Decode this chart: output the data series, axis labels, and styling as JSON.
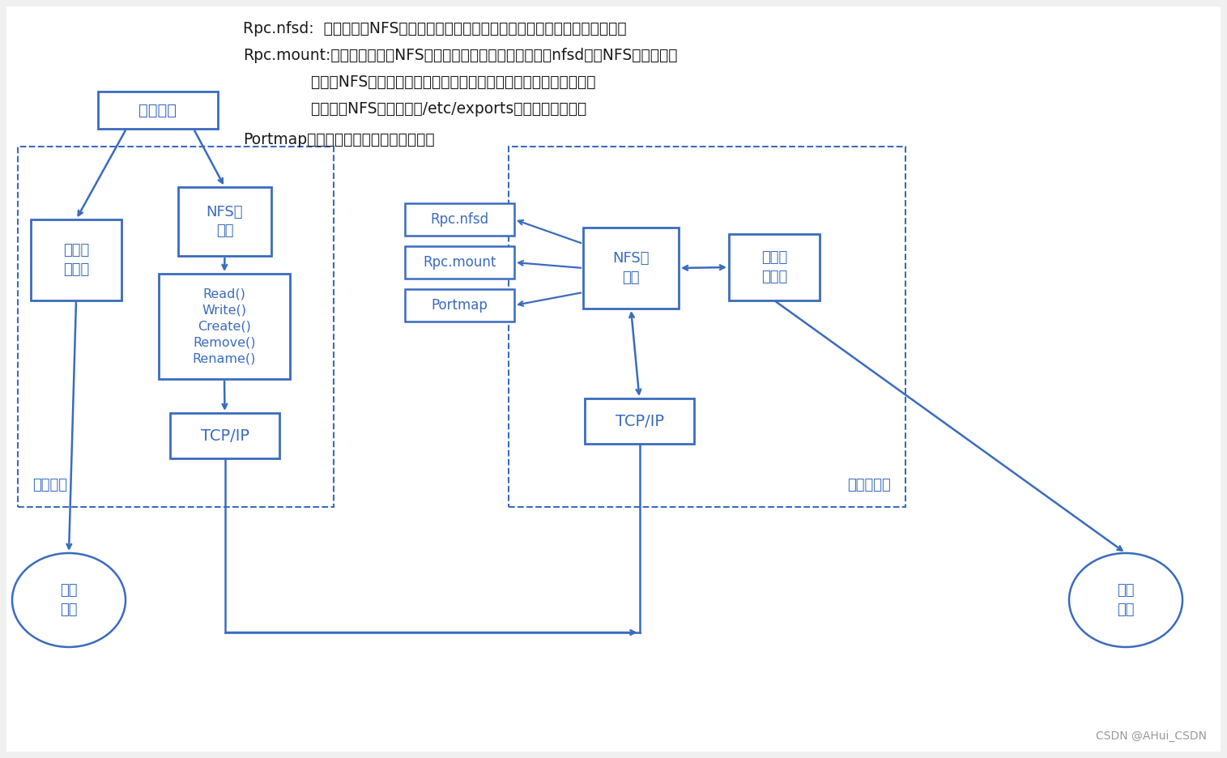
{
  "bg_color": "#f0f0f0",
  "box_color": "#3a6bbf",
  "box_face": "#ffffff",
  "dashed_color": "#3a6bbf",
  "line_color": "#3a6bbf",
  "annotation_line1": "Rpc.nfsd:  它是基本的NFS守护进程，主要功能是管理客户端是否能夠登录服务器；",
  "annotation_line2": "Rpc.mount:主要功能是管理NFS的文件系统。当客户端顺利通过nfsd登录NFS服务器后，",
  "annotation_line3": "              在使用NFS服务所提供的文件前，还必须通过文件使用权限的验证。",
  "annotation_line4": "              它会读取NFS的配置文件/etc/exports来对比客户端权限",
  "annotation_line5": "Portmap：主要功能是进行端口映射工作",
  "user_process": "用户进程",
  "local_file": "本地文\n件访问",
  "nfs_client": "NFS客\n户端",
  "rw_ops": "Read()\nWrite()\nCreate()\nRemove()\nRename()",
  "tcpip": "TCP/IP",
  "local_disk": "本地\n磁盘",
  "client_kernel": "客户内核",
  "rpc_nfsd": "Rpc.nfsd",
  "rpc_mount": "Rpc.mount",
  "portmap": "Portmap",
  "nfs_server": "NFS服\n务器",
  "srv_local_file": "本地文\n件访问",
  "srv_kernel": "服务器内核",
  "srv_local_disk": "本地\n磁盘",
  "footer": "CSDN @AHui_CSDN"
}
